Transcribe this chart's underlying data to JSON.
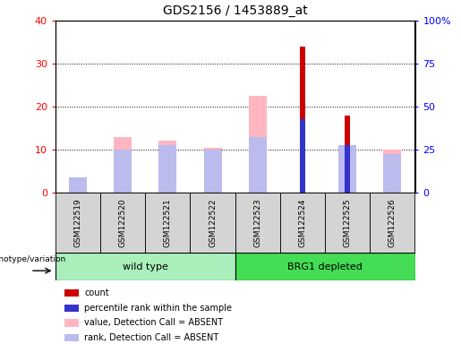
{
  "title": "GDS2156 / 1453889_at",
  "samples": [
    "GSM122519",
    "GSM122520",
    "GSM122521",
    "GSM122522",
    "GSM122523",
    "GSM122524",
    "GSM122525",
    "GSM122526"
  ],
  "count_values": [
    0,
    0,
    0,
    0,
    0,
    34,
    18,
    0
  ],
  "percentile_rank_values": [
    0,
    0,
    0,
    0,
    0,
    17,
    11,
    0
  ],
  "absent_value_values": [
    2,
    13,
    12,
    10.5,
    22.5,
    0,
    0,
    10
  ],
  "absent_rank_values": [
    3.5,
    10,
    11,
    10,
    13,
    0,
    11,
    9
  ],
  "left_ylim": [
    0,
    40
  ],
  "right_ylim": [
    0,
    100
  ],
  "left_yticks": [
    0,
    10,
    20,
    30,
    40
  ],
  "right_yticks": [
    0,
    25,
    50,
    75,
    100
  ],
  "right_yticklabels": [
    "0",
    "25",
    "50",
    "75",
    "100%"
  ],
  "color_count": "#CC0000",
  "color_percentile": "#3333CC",
  "color_absent_value": "#FFB6C1",
  "color_absent_rank": "#BBBBEE",
  "wide_bar_width": 0.4,
  "narrow_bar_width": 0.12,
  "group_spans": [
    {
      "label": "wild type",
      "start": 0,
      "end": 3,
      "color": "#AAEEBB"
    },
    {
      "label": "BRG1 depleted",
      "start": 4,
      "end": 7,
      "color": "#44DD55"
    }
  ],
  "genotype_label": "genotype/variation",
  "legend_items": [
    {
      "color": "#CC0000",
      "label": "count"
    },
    {
      "color": "#3333CC",
      "label": "percentile rank within the sample"
    },
    {
      "color": "#FFB6C1",
      "label": "value, Detection Call = ABSENT"
    },
    {
      "color": "#BBBBEE",
      "label": "rank, Detection Call = ABSENT"
    }
  ]
}
